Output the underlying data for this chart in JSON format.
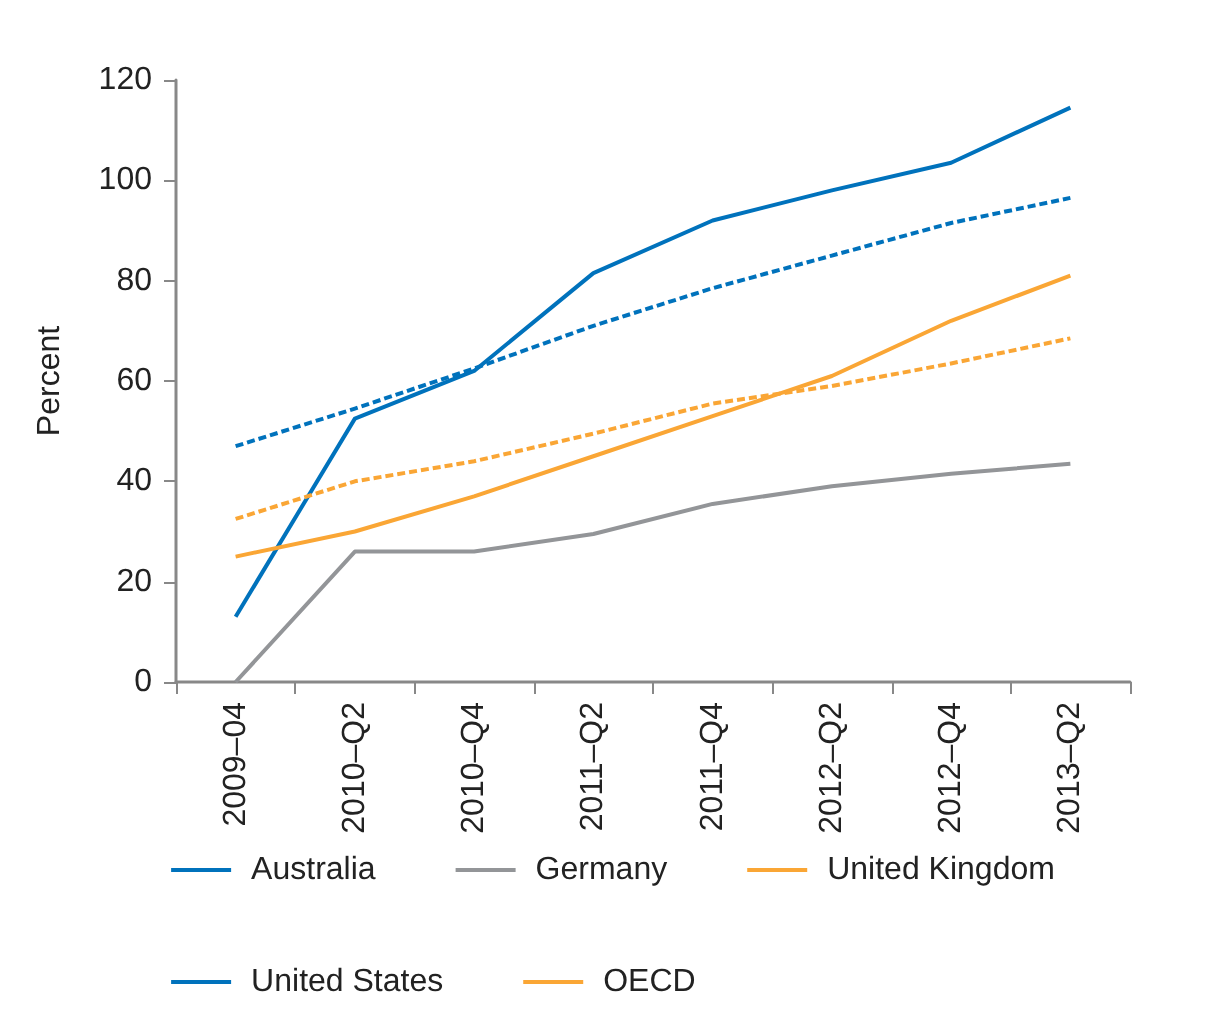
{
  "chart_data": {
    "type": "line",
    "ylabel": "Percent",
    "categories": [
      "2009–04",
      "2010–Q2",
      "2010–Q4",
      "2011–Q2",
      "2011–Q4",
      "2012–Q2",
      "2012–Q4",
      "2013–Q2"
    ],
    "series": [
      {
        "name": "Australia",
        "color": "#0072bc",
        "line_style": "solid",
        "values": [
          13,
          52.5,
          62,
          81.5,
          92,
          98,
          103.5,
          114.5
        ]
      },
      {
        "name": "Germany",
        "color": "#939598",
        "line_style": "solid",
        "values": [
          0,
          26,
          26,
          29.5,
          35.5,
          39,
          41.5,
          43.5
        ]
      },
      {
        "name": "United Kingdom",
        "color": "#faa635",
        "line_style": "solid",
        "values": [
          25,
          30,
          37,
          45,
          53,
          61,
          72,
          81
        ]
      },
      {
        "name": "United States",
        "color": "#0072bc",
        "line_style": "dashed",
        "values": [
          47,
          54.5,
          62.5,
          71,
          78.5,
          85,
          91.5,
          96.5
        ]
      },
      {
        "name": "OECD",
        "color": "#faa635",
        "line_style": "dashed",
        "values": [
          32.5,
          40,
          44,
          49.5,
          55.5,
          59,
          63.5,
          68.5
        ]
      }
    ],
    "ylim": [
      0,
      120
    ],
    "yticks": [
      0,
      20,
      40,
      60,
      80,
      100,
      120
    ],
    "grid": false,
    "legend": "bottom",
    "marker": "none"
  }
}
